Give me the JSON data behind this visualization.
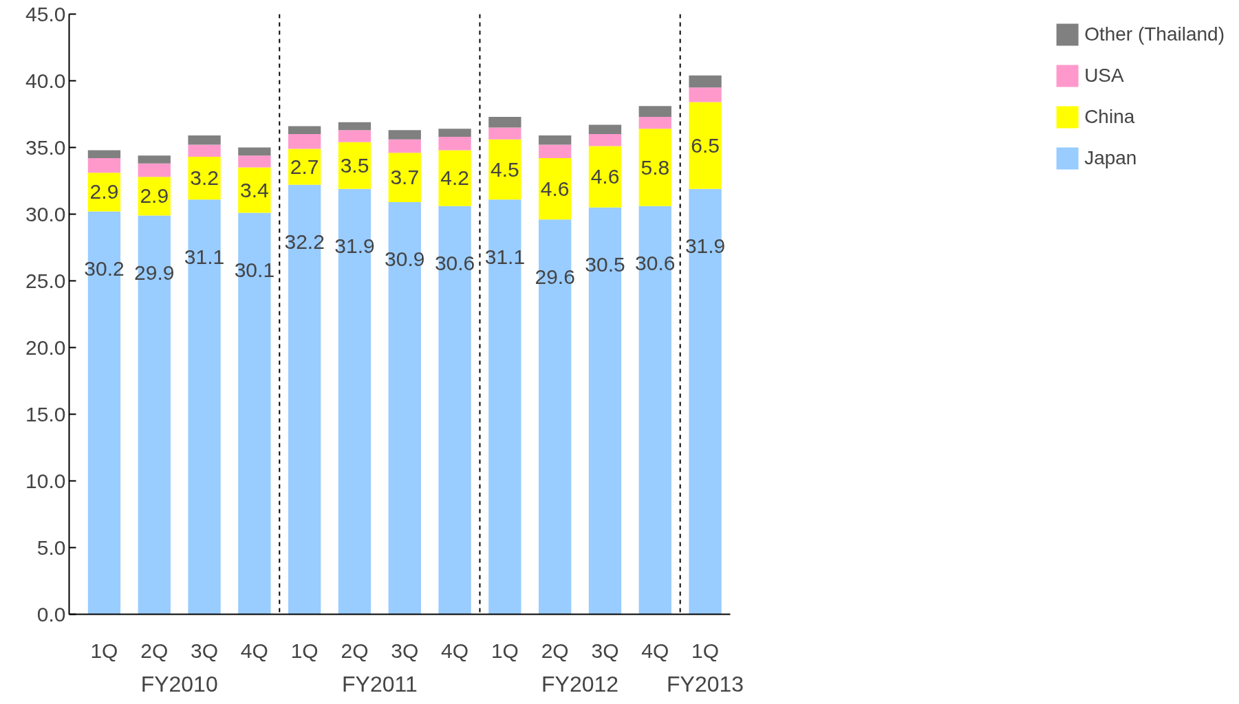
{
  "chart_data": {
    "type": "bar",
    "stacked": true,
    "categories": [
      "1Q",
      "2Q",
      "3Q",
      "4Q",
      "1Q",
      "2Q",
      "3Q",
      "4Q",
      "1Q",
      "2Q",
      "3Q",
      "4Q",
      "1Q"
    ],
    "series": [
      {
        "name": "Japan",
        "color": "#99ccff",
        "values": [
          30.2,
          29.9,
          31.1,
          30.1,
          32.2,
          31.9,
          30.9,
          30.6,
          31.1,
          29.6,
          30.5,
          30.6,
          31.9
        ],
        "value_labels": [
          "30.2",
          "29.9",
          "31.1",
          "30.1",
          "32.2",
          "31.9",
          "30.9",
          "30.6",
          "31.1",
          "29.6",
          "30.5",
          "30.6",
          "31.9"
        ]
      },
      {
        "name": "China",
        "color": "#ffff00",
        "values": [
          2.9,
          2.9,
          3.2,
          3.4,
          2.7,
          3.5,
          3.7,
          4.2,
          4.5,
          4.6,
          4.6,
          5.8,
          6.5
        ],
        "value_labels": [
          "2.9",
          "2.9",
          "3.2",
          "3.4",
          "2.7",
          "3.5",
          "3.7",
          "4.2",
          "4.5",
          "4.6",
          "4.6",
          "5.8",
          "6.5"
        ]
      },
      {
        "name": "USA",
        "color": "#ff99cc",
        "values": [
          1.1,
          1.0,
          0.9,
          0.9,
          1.1,
          0.9,
          1.0,
          1.0,
          0.9,
          1.0,
          0.9,
          0.9,
          1.1
        ]
      },
      {
        "name": "Other (Thailand)",
        "color": "#808080",
        "values": [
          0.6,
          0.6,
          0.7,
          0.6,
          0.6,
          0.6,
          0.7,
          0.6,
          0.8,
          0.7,
          0.7,
          0.8,
          0.9
        ]
      }
    ],
    "ylim": [
      0,
      45
    ],
    "yticks": [
      {
        "value": 0,
        "label": "0.0"
      },
      {
        "value": 5,
        "label": "5.0"
      },
      {
        "value": 10,
        "label": "10.0"
      },
      {
        "value": 15,
        "label": "15.0"
      },
      {
        "value": 20,
        "label": "20.0"
      },
      {
        "value": 25,
        "label": "25.0"
      },
      {
        "value": 30,
        "label": "30.0"
      },
      {
        "value": 35,
        "label": "35.0"
      },
      {
        "value": 40,
        "label": "40.0"
      },
      {
        "value": 45,
        "label": "45.0"
      }
    ],
    "annotations": [
      "FY2010",
      "FY2011",
      "FY2012",
      "FY2013"
    ],
    "grid": false,
    "legend": "right"
  }
}
